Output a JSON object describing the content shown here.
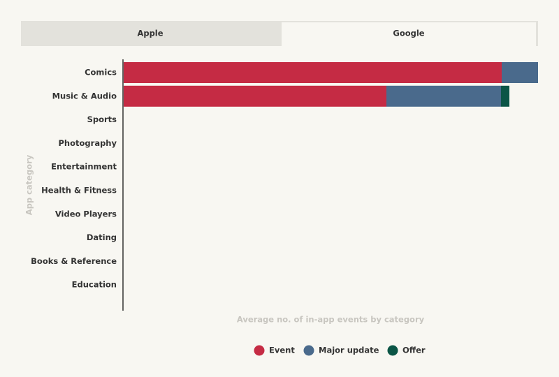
{
  "tabs": [
    "Apple",
    "Google"
  ],
  "chart_data": {
    "type": "bar",
    "orientation": "horizontal",
    "stacked": true,
    "y_label": "App category",
    "x_label": "Average no. of in-app events by category",
    "categories": [
      "Comics",
      "Music & Audio",
      "Sports",
      "Photography",
      "Entertainment",
      "Health & Fitness",
      "Video Players",
      "Dating",
      "Books & Reference",
      "Education"
    ],
    "series": [
      {
        "name": "Event",
        "color": "#c52b44",
        "values": [
          5.41,
          3.76,
          0,
          0,
          0,
          0,
          0,
          0,
          0,
          0
        ]
      },
      {
        "name": "Major update",
        "color": "#4a6a8c",
        "values": [
          0.52,
          1.64,
          0,
          0,
          0,
          0,
          0,
          0,
          0,
          0
        ]
      },
      {
        "name": "Offer",
        "color": "#0b5546",
        "values": [
          0,
          0.12,
          0,
          0,
          0,
          0,
          0,
          0,
          0,
          0
        ]
      }
    ],
    "xlim": [
      0,
      5.93
    ]
  }
}
